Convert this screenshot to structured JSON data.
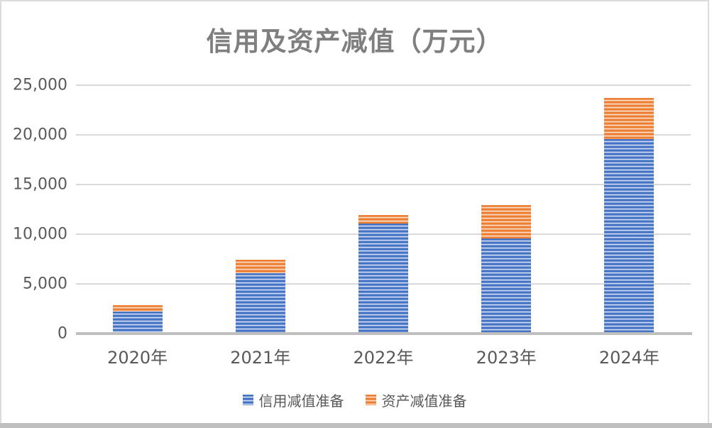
{
  "window": {
    "background": "#FFFFFF",
    "frame_border_color": "#DCDCDC",
    "bottom_strip_color": "#BFBFBF"
  },
  "chart_data": {
    "type": "bar",
    "stacked": true,
    "title": "信用及资产减值（万元）",
    "categories": [
      "2020年",
      "2021年",
      "2022年",
      "2023年",
      "2024年"
    ],
    "series": [
      {
        "name": "信用减值准备",
        "color": "#4472C4",
        "color_light": "#D7E0F4",
        "values": [
          2200,
          6100,
          11100,
          9600,
          19600
        ]
      },
      {
        "name": "资产减值准备",
        "color": "#ED7D31",
        "color_light": "#FBE2D0",
        "values": [
          650,
          1300,
          800,
          3300,
          4100
        ]
      }
    ],
    "y_axis": {
      "min": 0,
      "max": 25000,
      "step": 5000,
      "tick_labels": [
        "0",
        "5,000",
        "10,000",
        "15,000",
        "20,000",
        "25,000"
      ]
    },
    "grid": true,
    "legend_position": "bottom",
    "styles": {
      "title_color": "#7F7F7F",
      "axis_text_color": "#595959",
      "gridline_color": "#D9D9D9",
      "axis_line_color": "#BFBFBF"
    }
  }
}
